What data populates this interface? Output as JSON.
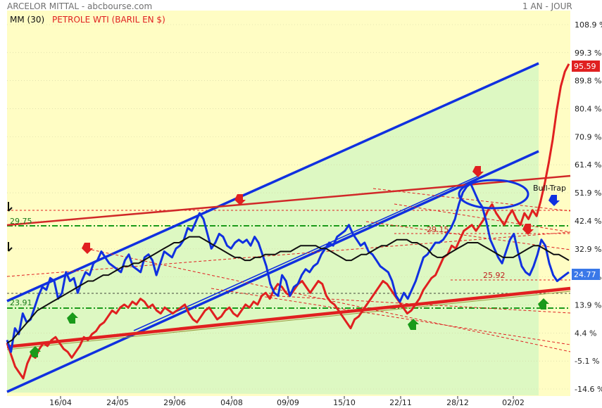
{
  "header": {
    "title": "ARCELOR MITTAL - abcbourse.com",
    "period": "1 AN - JOUR",
    "legend_ma": "MM (30)",
    "legend_oil": "PETROLE WTI (BARIL EN $)"
  },
  "colors": {
    "plot_bg": "#fffdc4",
    "channel_fill": "#ddf8c2",
    "price": "#1030e0",
    "oil": "#e02020",
    "ma": "#101010",
    "support": "#e02020",
    "level": "#1a9a1a",
    "last_price_bg": "#3a78e8",
    "last_oil_bg": "#e02020"
  },
  "icons": {
    "down_arrow": "down-arrow-icon",
    "up_arrow": "up-arrow-icon"
  },
  "annotations": {
    "bull_trap": "Bull-Trap",
    "level_29_75": "29.75",
    "level_23_91": "23.91",
    "level_29_15": "29.15",
    "level_25_92": "25.92"
  },
  "chart_data": {
    "type": "line",
    "title": "ARCELOR MITTAL - abcbourse.com",
    "ylabel": "",
    "ylim": [
      -14.6,
      108.9
    ],
    "y_ticks": [
      "108.9 %",
      "99.3 %",
      "89.8 %",
      "80.4 %",
      "70.9 %",
      "61.4 %",
      "51.9 %",
      "42.4 %",
      "32.9 %",
      "23.4 %",
      "13.9 %",
      "4.4 %",
      "-5.1 %",
      "-14.6 %"
    ],
    "x_ticks": [
      "16/04",
      "24/05",
      "29/06",
      "04/08",
      "09/09",
      "15/10",
      "22/11",
      "28/12",
      "02/02"
    ],
    "last_values": {
      "price": "24.77",
      "oil": "95.59"
    },
    "series": [
      {
        "name": "ARCELOR MITTAL",
        "color": "#1030e0",
        "values": [
          2,
          -2,
          6,
          4,
          11,
          8,
          9,
          13,
          17,
          20,
          19,
          23,
          22,
          16,
          18,
          25,
          22,
          23,
          18,
          22,
          25,
          24,
          28,
          29,
          32,
          30,
          28,
          27,
          26,
          25,
          29,
          31,
          27,
          26,
          25,
          30,
          31,
          29,
          24,
          28,
          32,
          31,
          30,
          33,
          34,
          36,
          40,
          39,
          42,
          45,
          43,
          38,
          33,
          35,
          38,
          37,
          34,
          33,
          35,
          36,
          35,
          36,
          34,
          37,
          35,
          31,
          27,
          21,
          18,
          17,
          24,
          22,
          17,
          20,
          21,
          24,
          26,
          25,
          27,
          28,
          31,
          33,
          35,
          34,
          37,
          38,
          39,
          41,
          38,
          36,
          34,
          35,
          32,
          31,
          29,
          27,
          26,
          25,
          22,
          17,
          15,
          18,
          16,
          19,
          22,
          26,
          30,
          31,
          33,
          35,
          35,
          36,
          38,
          40,
          43,
          48,
          52,
          54,
          55,
          52,
          49,
          47,
          42,
          36,
          33,
          30,
          28,
          32,
          36,
          38,
          32,
          27,
          25,
          24,
          27,
          31,
          36,
          34,
          28,
          24,
          22,
          23,
          24,
          25
        ]
      },
      {
        "name": "PETROLE WTI (BARIL EN $)",
        "color": "#e02020",
        "values": [
          1,
          -3,
          -7,
          -9,
          -11,
          -6,
          -3,
          -4,
          -1,
          1,
          0,
          2,
          3,
          1,
          -1,
          -2,
          -4,
          -2,
          0,
          3,
          2,
          4,
          5,
          7,
          8,
          10,
          12,
          11,
          13,
          14,
          13,
          15,
          14,
          16,
          15,
          13,
          14,
          12,
          11,
          13,
          12,
          11,
          12,
          13,
          14,
          11,
          9,
          8,
          10,
          12,
          13,
          11,
          9,
          10,
          12,
          13,
          11,
          10,
          12,
          14,
          13,
          15,
          14,
          17,
          18,
          16,
          19,
          21,
          20,
          18,
          17,
          19,
          21,
          22,
          20,
          18,
          20,
          22,
          21,
          17,
          15,
          14,
          12,
          10,
          8,
          6,
          9,
          10,
          12,
          14,
          16,
          18,
          20,
          22,
          21,
          19,
          17,
          15,
          13,
          11,
          12,
          14,
          16,
          19,
          21,
          23,
          24,
          27,
          30,
          31,
          34,
          33,
          36,
          39,
          40,
          41,
          39,
          41,
          43,
          46,
          48,
          45,
          43,
          41,
          44,
          46,
          43,
          41,
          45,
          43,
          46,
          44,
          49,
          55,
          62,
          70,
          80,
          88,
          93,
          95.59
        ]
      },
      {
        "name": "MM (30)",
        "color": "#101010",
        "values": [
          1,
          2,
          4,
          6,
          8,
          10,
          12,
          13,
          14,
          15,
          16,
          17,
          18,
          19,
          20,
          21,
          22,
          22,
          23,
          24,
          24,
          25,
          26,
          27,
          27,
          28,
          28,
          29,
          30,
          31,
          32,
          33,
          34,
          35,
          35,
          36,
          37,
          37,
          37,
          36,
          35,
          34,
          33,
          32,
          31,
          30,
          30,
          29,
          29,
          30,
          30,
          31,
          31,
          31,
          32,
          32,
          32,
          33,
          34,
          34,
          34,
          34,
          33,
          33,
          32,
          31,
          30,
          29,
          29,
          30,
          31,
          31,
          32,
          33,
          34,
          34,
          35,
          36,
          36,
          36,
          35,
          35,
          34,
          33,
          31,
          30,
          30,
          31,
          32,
          33,
          34,
          35,
          35,
          35,
          34,
          33,
          32,
          31,
          30,
          30,
          30,
          31,
          32,
          33,
          34,
          34,
          33,
          32,
          31,
          31,
          30,
          29
        ]
      }
    ]
  }
}
